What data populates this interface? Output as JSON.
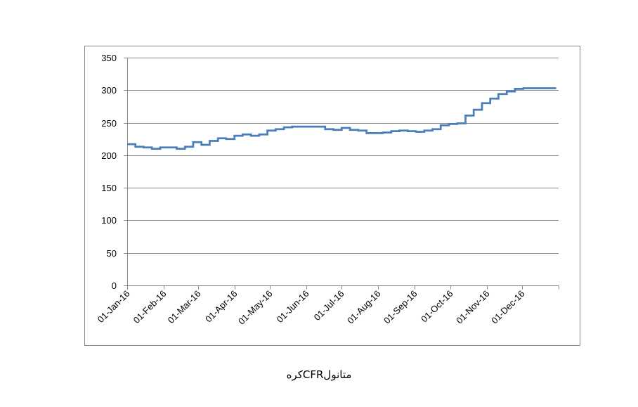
{
  "chart_data": {
    "type": "line",
    "title": "",
    "xlabel": "",
    "ylabel": "",
    "caption": "متانولCFRکره",
    "ylim": [
      0,
      350
    ],
    "y_ticks": [
      0,
      50,
      100,
      150,
      200,
      250,
      300,
      350
    ],
    "x_ticks": [
      "01-Jan-16",
      "01-Feb-16",
      "01-Mar-16",
      "01-Apr-16",
      "01-May-16",
      "01-Jun-16",
      "01-Jul-16",
      "01-Aug-16",
      "01-Sep-16",
      "01-Oct-16",
      "01-Nov-16",
      "01-Dec-16"
    ],
    "grid": "horizontal",
    "line_style": "step",
    "colors": {
      "series": "#4a7ebb",
      "grid": "#868686",
      "frame": "#868686"
    },
    "series": [
      {
        "x": [
          "2016-01-01",
          "2016-01-08",
          "2016-01-15",
          "2016-01-22",
          "2016-01-29",
          "2016-02-05",
          "2016-02-12",
          "2016-02-19",
          "2016-02-26",
          "2016-03-04",
          "2016-03-11",
          "2016-03-18",
          "2016-03-25",
          "2016-04-01",
          "2016-04-08",
          "2016-04-15",
          "2016-04-22",
          "2016-04-29",
          "2016-05-06",
          "2016-05-13",
          "2016-05-20",
          "2016-05-27",
          "2016-06-03",
          "2016-06-10",
          "2016-06-17",
          "2016-06-24",
          "2016-07-01",
          "2016-07-08",
          "2016-07-15",
          "2016-07-22",
          "2016-07-29",
          "2016-08-05",
          "2016-08-12",
          "2016-08-19",
          "2016-08-26",
          "2016-09-02",
          "2016-09-09",
          "2016-09-16",
          "2016-09-23",
          "2016-09-30",
          "2016-10-07",
          "2016-10-14",
          "2016-10-21",
          "2016-10-28",
          "2016-11-04",
          "2016-11-11",
          "2016-11-18",
          "2016-11-25",
          "2016-12-02",
          "2016-12-09",
          "2016-12-16",
          "2016-12-23"
        ],
        "values": [
          217,
          213,
          212,
          210,
          212,
          212,
          210,
          213,
          220,
          216,
          222,
          226,
          225,
          230,
          232,
          230,
          232,
          238,
          240,
          243,
          244,
          244,
          244,
          244,
          240,
          239,
          242,
          239,
          238,
          234,
          234,
          235,
          237,
          238,
          237,
          236,
          238,
          240,
          246,
          248,
          249,
          261,
          270,
          280,
          287,
          294,
          298,
          302,
          303,
          303,
          303,
          303
        ]
      }
    ]
  }
}
